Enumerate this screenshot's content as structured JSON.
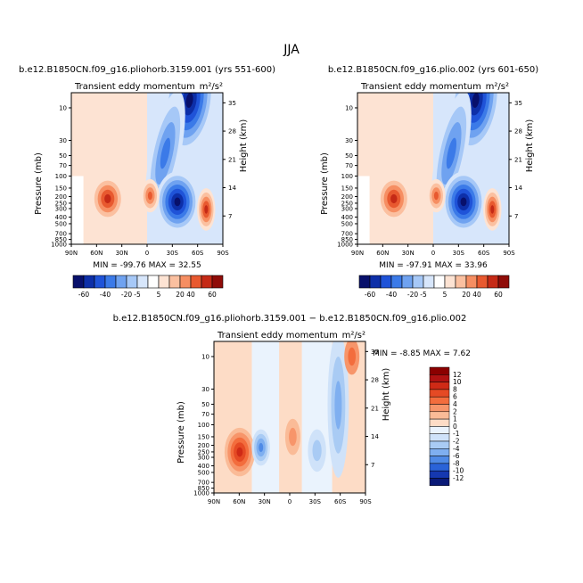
{
  "page": {
    "title": "JJA"
  },
  "colorbars": {
    "top": {
      "levels": [
        "-60",
        "-40",
        "-20",
        "-5",
        "5",
        "20",
        "40",
        "60"
      ],
      "colors": [
        "#08106b",
        "#0d2fa8",
        "#1f53d8",
        "#3b7ae8",
        "#6fa2f0",
        "#a6c8f7",
        "#d7e6fb",
        "#ffffff",
        "#fde3d3",
        "#fbc0a0",
        "#f68e62",
        "#e8592f",
        "#c52a16",
        "#8f0c08"
      ]
    },
    "bottom": {
      "levels": [
        "12",
        "10",
        "8",
        "6",
        "4",
        "2",
        "1",
        "0",
        "-1",
        "-2",
        "-4",
        "-6",
        "-8",
        "-10",
        "-12"
      ],
      "colors": [
        "#8b0000",
        "#b01212",
        "#cf2a16",
        "#e54a24",
        "#f36d3d",
        "#f7956a",
        "#fabb97",
        "#fddcc6",
        "#eaf3fd",
        "#cfe2f9",
        "#a9cbf4",
        "#7faff0",
        "#4f8ae6",
        "#2a63d8",
        "#1538b0",
        "#0a1a78"
      ]
    }
  },
  "chart_data": [
    {
      "type": "contour",
      "title": "b.e12.B1850CN.f09_g16.pliohorb.3159.001 (yrs 551-600)",
      "subtitle": "Transient eddy momentum",
      "units": "m²/s²",
      "xlabel": "",
      "ylabel": "Pressure (mb)",
      "ylabel_right": "Height (km)",
      "x_ticks": [
        "90N",
        "60N",
        "30N",
        "0",
        "30S",
        "60S",
        "90S"
      ],
      "y_ticks": [
        "10",
        "30",
        "50",
        "70",
        "100",
        "150",
        "200",
        "250",
        "300",
        "400",
        "500",
        "700",
        "850",
        "1000"
      ],
      "y_ticks_right": [
        "35",
        "28",
        "21",
        "14",
        "7"
      ],
      "min_label": "MIN =  -99.76   MAX =   32.55",
      "min": -99.76,
      "max": 32.55
    },
    {
      "type": "contour",
      "title": "b.e12.B1850CN.f09_g16.plio.002 (yrs 601-650)",
      "subtitle": "Transient eddy momentum",
      "units": "m²/s²",
      "xlabel": "",
      "ylabel": "Pressure (mb)",
      "ylabel_right": "Height (km)",
      "x_ticks": [
        "90N",
        "60N",
        "30N",
        "0",
        "30S",
        "60S",
        "90S"
      ],
      "y_ticks": [
        "10",
        "30",
        "50",
        "70",
        "100",
        "150",
        "200",
        "250",
        "300",
        "400",
        "500",
        "700",
        "850",
        "1000"
      ],
      "y_ticks_right": [
        "35",
        "28",
        "21",
        "14",
        "7"
      ],
      "min_label": "MIN =  -97.91   MAX =   33.96",
      "min": -97.91,
      "max": 33.96
    },
    {
      "type": "contour",
      "title": "b.e12.B1850CN.f09_g16.pliohorb.3159.001 − b.e12.B1850CN.f09_g16.plio.002",
      "subtitle": "Transient eddy momentum",
      "units": "m²/s²",
      "xlabel": "",
      "ylabel": "Pressure (mb)",
      "ylabel_right": "Height (km)",
      "x_ticks": [
        "90N",
        "60N",
        "30N",
        "0",
        "30S",
        "60S",
        "90S"
      ],
      "y_ticks": [
        "10",
        "30",
        "50",
        "70",
        "100",
        "150",
        "200",
        "250",
        "300",
        "400",
        "500",
        "700",
        "850",
        "1000"
      ],
      "y_ticks_right": [
        "35",
        "28",
        "21",
        "14",
        "7"
      ],
      "min_label": "MIN =   -8.85   MAX =    7.62",
      "min": -8.85,
      "max": 7.62
    }
  ]
}
